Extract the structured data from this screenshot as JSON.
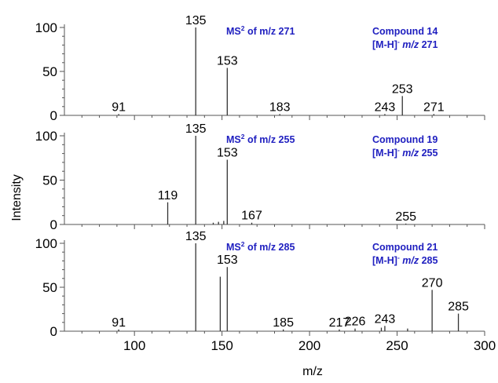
{
  "figure": {
    "ylabel": "Intensity",
    "xlabel": "m/z"
  },
  "chart_data": [
    {
      "type": "bar",
      "panel": 1,
      "title_prefix": "MS",
      "title_sup": "2",
      "title_suffix": " of m/z 271",
      "compound": "Compound 14",
      "ion_prefix": "[M-H]",
      "ion_sup": "-",
      "ion_mz": "m/z",
      "ion_value": " 271",
      "xlim": [
        60,
        300
      ],
      "ylim": [
        0,
        100
      ],
      "yticks": [
        0,
        50,
        100
      ],
      "peaks": [
        {
          "mz": 91,
          "intensity": 1.5,
          "label": "91"
        },
        {
          "mz": 135,
          "intensity": 100,
          "label": "135"
        },
        {
          "mz": 153,
          "intensity": 54,
          "label": "153"
        },
        {
          "mz": 183,
          "intensity": 1.5,
          "label": "183"
        },
        {
          "mz": 243,
          "intensity": 1.5,
          "label": "243"
        },
        {
          "mz": 253,
          "intensity": 22,
          "label": "253"
        },
        {
          "mz": 271,
          "intensity": 1.5,
          "label": "271"
        }
      ]
    },
    {
      "type": "bar",
      "panel": 2,
      "title_prefix": "MS",
      "title_sup": "2",
      "title_suffix": " of m/z 255",
      "compound": "Compound 19",
      "ion_prefix": "[M-H]",
      "ion_sup": "-",
      "ion_mz": "m/z",
      "ion_value": " 255",
      "xlim": [
        60,
        300
      ],
      "ylim": [
        0,
        100
      ],
      "yticks": [
        0,
        50,
        100
      ],
      "peaks": [
        {
          "mz": 119,
          "intensity": 25,
          "label": "119"
        },
        {
          "mz": 135,
          "intensity": 100,
          "label": "135"
        },
        {
          "mz": 145,
          "intensity": 2,
          "label": ""
        },
        {
          "mz": 148,
          "intensity": 3,
          "label": ""
        },
        {
          "mz": 151,
          "intensity": 4,
          "label": ""
        },
        {
          "mz": 153,
          "intensity": 73,
          "label": "153"
        },
        {
          "mz": 167,
          "intensity": 2,
          "label": "167"
        },
        {
          "mz": 255,
          "intensity": 1,
          "label": "255"
        }
      ]
    },
    {
      "type": "bar",
      "panel": 3,
      "title_prefix": "MS",
      "title_sup": "2",
      "title_suffix": " of m/z 285",
      "compound": "Compound 21",
      "ion_prefix": "[M-H]",
      "ion_sup": "-",
      "ion_mz": "m/z",
      "ion_value": " 285",
      "xlim": [
        60,
        300
      ],
      "ylim": [
        0,
        100
      ],
      "yticks": [
        0,
        50,
        100
      ],
      "xticks": [
        100,
        150,
        200,
        250,
        300
      ],
      "peaks": [
        {
          "mz": 91,
          "intensity": 2,
          "label": "91"
        },
        {
          "mz": 135,
          "intensity": 100,
          "label": "135"
        },
        {
          "mz": 149,
          "intensity": 62,
          "label": ""
        },
        {
          "mz": 153,
          "intensity": 73,
          "label": "153"
        },
        {
          "mz": 185,
          "intensity": 2,
          "label": "185"
        },
        {
          "mz": 217,
          "intensity": 2,
          "label": "217"
        },
        {
          "mz": 226,
          "intensity": 3,
          "label": "226"
        },
        {
          "mz": 241,
          "intensity": 4,
          "label": ""
        },
        {
          "mz": 243,
          "intensity": 6,
          "label": "243"
        },
        {
          "mz": 256,
          "intensity": 3,
          "label": ""
        },
        {
          "mz": 270,
          "intensity": 47,
          "label": "270"
        },
        {
          "mz": 285,
          "intensity": 20,
          "label": "285"
        }
      ]
    }
  ]
}
